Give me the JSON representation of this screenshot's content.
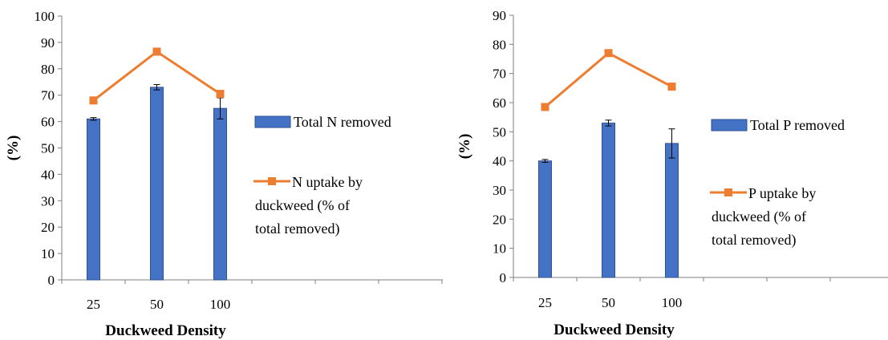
{
  "colors": {
    "bar": "#4472C4",
    "bar_edge": "#2F528F",
    "line": "#ED7D31",
    "axis": "#7f7f7f"
  },
  "chart_data": [
    {
      "type": "bar",
      "categories": [
        "25",
        "50",
        "100"
      ],
      "x_ticks": [
        "25",
        "50",
        "100",
        "",
        "",
        "",
        ""
      ],
      "ylim": [
        0,
        100
      ],
      "ystep": 10,
      "ylabel": "(%)",
      "xlabel": "Duckweed Density",
      "grid": false,
      "legend_position": "right",
      "series": [
        {
          "name": "Total N removed",
          "type": "bar",
          "values": [
            61,
            73,
            65
          ],
          "errors": [
            0.5,
            1,
            4
          ]
        },
        {
          "name": "N uptake by duckweed (% of total removed)",
          "name_lines": [
            "N uptake by",
            "duckweed (% of",
            "total removed)"
          ],
          "type": "line",
          "values": [
            68,
            86.5,
            70.5
          ]
        }
      ]
    },
    {
      "type": "bar",
      "categories": [
        "25",
        "50",
        "100"
      ],
      "x_ticks": [
        "25",
        "50",
        "100",
        "",
        "",
        "",
        ""
      ],
      "ylim": [
        0,
        90
      ],
      "ystep": 10,
      "ylabel": "(%)",
      "xlabel": "Duckweed Density",
      "grid": false,
      "legend_position": "right",
      "series": [
        {
          "name": "Total P removed",
          "type": "bar",
          "values": [
            40,
            53,
            46
          ],
          "errors": [
            0.5,
            1,
            5
          ]
        },
        {
          "name": "P uptake by duckweed (% of total removed)",
          "name_lines": [
            "P uptake by",
            "duckweed (% of",
            "total removed)"
          ],
          "type": "line",
          "values": [
            58.5,
            77,
            65.5
          ]
        }
      ]
    }
  ]
}
